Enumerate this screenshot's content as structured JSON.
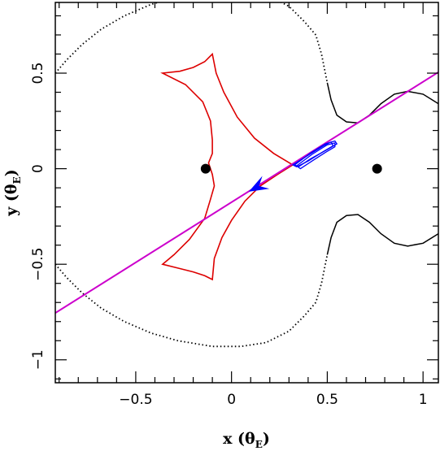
{
  "chart_data": {
    "type": "scatter",
    "xlabel": "x (θE)",
    "ylabel": "y (θE)",
    "xlabel_main": "x",
    "xlabel_unit": "θ",
    "xlabel_unit_sub": "E",
    "ylabel_main": "y",
    "ylabel_unit": "θ",
    "ylabel_unit_sub": "E",
    "xlim": [
      -0.92,
      1.08
    ],
    "ylim": [
      -1.12,
      0.87
    ],
    "xticks": [
      -0.5,
      0,
      0.5,
      1
    ],
    "xtick_labels": [
      "−0.5",
      "0",
      "0.5",
      "1"
    ],
    "yticks": [
      -1,
      -0.5,
      0,
      0.5
    ],
    "ytick_labels": [
      "−1",
      "−0.5",
      "0",
      "0.5"
    ],
    "grid": false,
    "colors": {
      "critical_curve": "#000000",
      "caustic": "#dd0000",
      "trajectory": "#cc00cc",
      "source_motion": "#0000ff",
      "lens": "#000000"
    },
    "lenses": [
      {
        "x": -0.135,
        "y": 0.0
      },
      {
        "x": 0.76,
        "y": 0.0
      }
    ],
    "trajectory": {
      "x": [
        -0.92,
        1.08
      ],
      "y": [
        -0.755,
        0.505
      ]
    },
    "caustic": {
      "x": [
        0.32,
        0.2,
        0.08,
        -0.03,
        -0.09,
        -0.11,
        -0.1,
        -0.12,
        -0.18,
        -0.26,
        -0.36,
        -0.22,
        -0.12,
        -0.1,
        -0.11,
        -0.09,
        -0.03,
        0.08,
        0.2,
        0.32,
        0.2,
        0.1,
        0.0,
        -0.08,
        -0.11,
        -0.1,
        -0.12,
        -0.2,
        -0.36,
        -0.2,
        -0.1,
        -0.1,
        -0.12,
        -0.09,
        -0.02,
        0.1,
        0.2,
        0.32
      ],
      "y": [
        0.02,
        0.08,
        0.17,
        0.3,
        0.43,
        0.52,
        0.6,
        0.56,
        0.53,
        0.51,
        0.5,
        0.42,
        0.3,
        0.2,
        0.1,
        0.03,
        0.0,
        0.0,
        0.0,
        0.02,
        -0.03,
        -0.08,
        -0.14,
        -0.24,
        -0.38,
        -0.58,
        -0.56,
        -0.53,
        -0.5,
        -0.41,
        -0.3,
        -0.2,
        -0.12,
        -0.05,
        -0.02,
        -0.03,
        -0.03,
        0.02
      ]
    },
    "caustic_outline": [
      [
        0.32,
        0.02
      ],
      [
        0.22,
        0.08
      ],
      [
        0.12,
        0.16
      ],
      [
        0.03,
        0.27
      ],
      [
        -0.04,
        0.4
      ],
      [
        -0.08,
        0.5
      ],
      [
        -0.1,
        0.6
      ],
      [
        -0.14,
        0.56
      ],
      [
        -0.2,
        0.53
      ],
      [
        -0.27,
        0.51
      ],
      [
        -0.36,
        0.5
      ],
      [
        -0.24,
        0.44
      ],
      [
        -0.15,
        0.35
      ],
      [
        -0.11,
        0.25
      ],
      [
        -0.1,
        0.15
      ],
      [
        -0.1,
        0.08
      ],
      [
        -0.12,
        0.03
      ],
      [
        -0.11,
        0.0
      ],
      [
        -0.1,
        -0.03
      ],
      [
        -0.09,
        -0.09
      ],
      [
        -0.11,
        -0.16
      ],
      [
        -0.14,
        -0.26
      ],
      [
        -0.22,
        -0.37
      ],
      [
        -0.3,
        -0.45
      ],
      [
        -0.36,
        -0.5
      ],
      [
        -0.28,
        -0.52
      ],
      [
        -0.2,
        -0.54
      ],
      [
        -0.14,
        -0.56
      ],
      [
        -0.1,
        -0.58
      ],
      [
        -0.09,
        -0.47
      ],
      [
        -0.05,
        -0.36
      ],
      [
        0.0,
        -0.27
      ],
      [
        0.07,
        -0.17
      ],
      [
        0.15,
        -0.09
      ],
      [
        0.24,
        -0.03
      ],
      [
        0.32,
        0.02
      ]
    ],
    "critical_curve_outline": [
      [
        -0.92,
        0.5
      ],
      [
        -0.86,
        0.57
      ],
      [
        -0.78,
        0.65
      ],
      [
        -0.68,
        0.73
      ],
      [
        -0.56,
        0.8
      ],
      [
        -0.42,
        0.86
      ],
      [
        -0.28,
        0.9
      ],
      [
        -0.1,
        0.93
      ],
      [
        0.05,
        0.93
      ],
      [
        0.18,
        0.91
      ],
      [
        0.3,
        0.85
      ],
      [
        0.38,
        0.77
      ],
      [
        0.44,
        0.7
      ],
      [
        0.47,
        0.6
      ],
      [
        0.5,
        0.45
      ],
      [
        0.52,
        0.36
      ],
      [
        0.55,
        0.28
      ],
      [
        0.6,
        0.245
      ],
      [
        0.66,
        0.24
      ],
      [
        0.72,
        0.28
      ],
      [
        0.78,
        0.34
      ],
      [
        0.85,
        0.39
      ],
      [
        0.92,
        0.405
      ],
      [
        1.0,
        0.39
      ],
      [
        1.08,
        0.34
      ]
    ],
    "critical_curve_lower": [
      [
        -0.92,
        -0.5
      ],
      [
        -0.86,
        -0.57
      ],
      [
        -0.78,
        -0.65
      ],
      [
        -0.68,
        -0.73
      ],
      [
        -0.56,
        -0.8
      ],
      [
        -0.42,
        -0.86
      ],
      [
        -0.28,
        -0.9
      ],
      [
        -0.1,
        -0.93
      ],
      [
        0.05,
        -0.93
      ],
      [
        0.18,
        -0.91
      ],
      [
        0.3,
        -0.85
      ],
      [
        0.38,
        -0.77
      ],
      [
        0.44,
        -0.7
      ],
      [
        0.47,
        -0.6
      ],
      [
        0.5,
        -0.45
      ],
      [
        0.52,
        -0.36
      ],
      [
        0.55,
        -0.28
      ],
      [
        0.6,
        -0.245
      ],
      [
        0.66,
        -0.24
      ],
      [
        0.72,
        -0.28
      ],
      [
        0.78,
        -0.34
      ],
      [
        0.85,
        -0.39
      ],
      [
        0.92,
        -0.405
      ],
      [
        1.0,
        -0.39
      ],
      [
        1.08,
        -0.34
      ]
    ],
    "source_loops": [
      [
        [
          0.32,
          0.02
        ],
        [
          0.4,
          0.07
        ],
        [
          0.48,
          0.12
        ],
        [
          0.52,
          0.14
        ],
        [
          0.53,
          0.12
        ],
        [
          0.48,
          0.09
        ],
        [
          0.4,
          0.04
        ],
        [
          0.34,
          0.01
        ]
      ],
      [
        [
          0.33,
          0.02
        ],
        [
          0.41,
          0.08
        ],
        [
          0.49,
          0.13
        ],
        [
          0.54,
          0.145
        ],
        [
          0.55,
          0.13
        ],
        [
          0.5,
          0.1
        ],
        [
          0.41,
          0.05
        ],
        [
          0.35,
          0.01
        ]
      ],
      [
        [
          0.34,
          0.015
        ],
        [
          0.42,
          0.075
        ],
        [
          0.5,
          0.125
        ],
        [
          0.54,
          0.135
        ],
        [
          0.54,
          0.115
        ],
        [
          0.49,
          0.085
        ],
        [
          0.42,
          0.04
        ],
        [
          0.36,
          0.0
        ]
      ]
    ],
    "source_arrow": {
      "tip": [
        0.09,
        -0.12
      ],
      "tail": [
        0.2,
        -0.06
      ]
    }
  }
}
